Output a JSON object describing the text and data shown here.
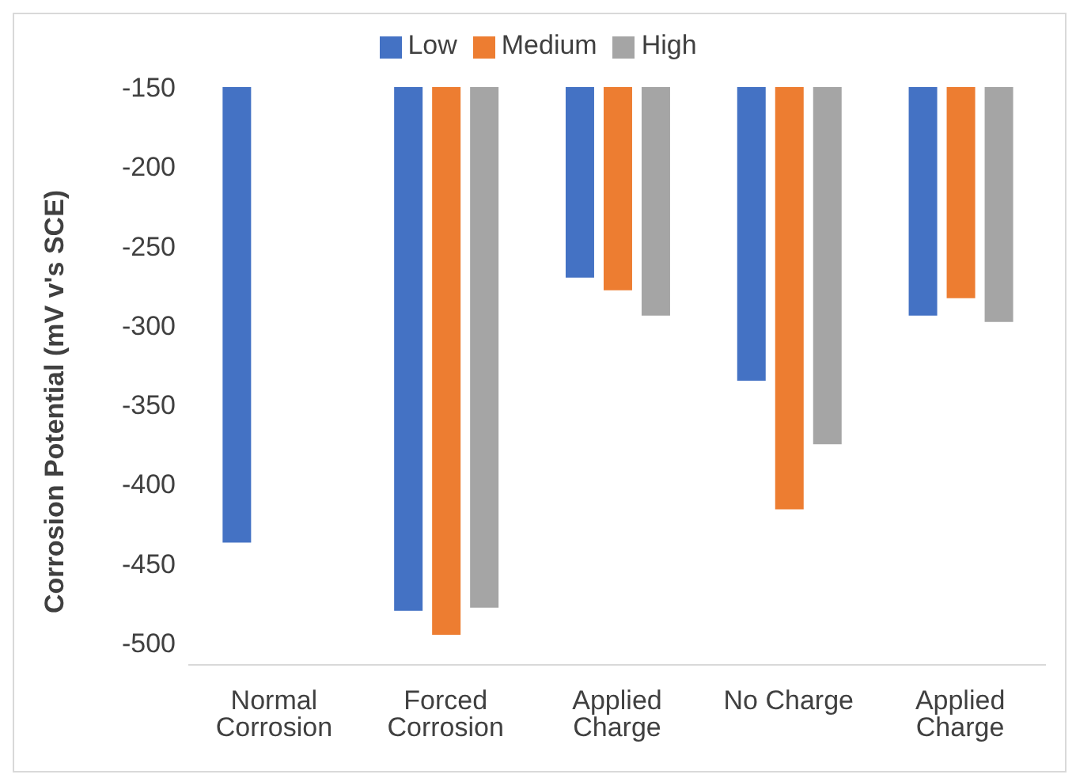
{
  "chart_data": {
    "type": "bar",
    "ylabel": "Corrosion Potential (mV v's SCE)",
    "categories": [
      "Normal Corrosion",
      "Forced Corrosion",
      "Applied Charge",
      "No Charge",
      "Applied Charge"
    ],
    "series": [
      {
        "name": "Low",
        "color": "#4472c4",
        "values": [
          -437,
          -480,
          -270,
          -335,
          -294
        ]
      },
      {
        "name": "Medium",
        "color": "#ed7d31",
        "values": [
          null,
          -495,
          -278,
          -416,
          -283
        ]
      },
      {
        "name": "High",
        "color": "#a5a5a5",
        "values": [
          null,
          -478,
          -294,
          -375,
          -298
        ]
      }
    ],
    "ylim": [
      -514,
      -150
    ],
    "yticks": [
      -150,
      -200,
      -250,
      -300,
      -350,
      -400,
      -450,
      -500
    ],
    "grid": false,
    "legend": "top"
  }
}
